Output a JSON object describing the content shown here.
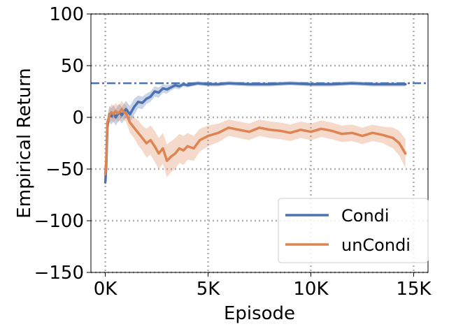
{
  "chart_data": {
    "type": "line",
    "title": "",
    "xlabel": "Episode",
    "ylabel": "Empirical Return",
    "xlim": [
      -700,
      15700
    ],
    "ylim": [
      -150,
      100
    ],
    "x_ticks": [
      0,
      5000,
      10000,
      15000
    ],
    "x_tick_labels": [
      "0K",
      "5K",
      "10K",
      "15K"
    ],
    "y_ticks": [
      -150,
      -100,
      -50,
      0,
      50,
      100
    ],
    "y_tick_labels": [
      "−150",
      "−100",
      "−50",
      "0",
      "50",
      "100"
    ],
    "grid": true,
    "legend": "lower right",
    "reference_line": {
      "y": 33,
      "style": "dashdot",
      "color": "#4c72b0"
    },
    "series": [
      {
        "name": "Condi",
        "color": "#4c72b0",
        "x": [
          0,
          50,
          100,
          150,
          200,
          300,
          400,
          500,
          600,
          700,
          800,
          1000,
          1200,
          1400,
          1600,
          1800,
          2000,
          2200,
          2400,
          2600,
          2800,
          3000,
          3200,
          3400,
          3600,
          3800,
          4000,
          4500,
          5000,
          5500,
          6000,
          7000,
          8000,
          9000,
          10000,
          11000,
          12000,
          13000,
          14000,
          14600
        ],
        "values": [
          -63,
          -45,
          -10,
          -2,
          3,
          1,
          4,
          0,
          3,
          5,
          2,
          8,
          3,
          10,
          15,
          14,
          18,
          20,
          25,
          24,
          28,
          27,
          29,
          31,
          30,
          32,
          31,
          33,
          32,
          32,
          33,
          32,
          32,
          33,
          32,
          32,
          33,
          32,
          32,
          32
        ],
        "band": [
          4,
          4,
          6,
          8,
          8,
          8,
          8,
          8,
          8,
          8,
          8,
          8,
          8,
          8,
          6,
          6,
          5,
          5,
          5,
          5,
          4,
          4,
          3,
          3,
          3,
          2,
          2,
          2,
          2,
          2,
          2,
          2,
          2,
          2,
          2,
          2,
          2,
          2,
          2,
          2
        ]
      },
      {
        "name": "unCondi",
        "color": "#dd8452",
        "x": [
          0,
          50,
          100,
          200,
          300,
          400,
          500,
          600,
          700,
          800,
          900,
          1000,
          1200,
          1400,
          1600,
          1800,
          2000,
          2200,
          2400,
          2600,
          2800,
          3000,
          3200,
          3400,
          3600,
          3800,
          4000,
          4300,
          4600,
          5000,
          5500,
          6000,
          6500,
          7000,
          7500,
          8000,
          8500,
          9000,
          9500,
          10000,
          10500,
          11000,
          11500,
          12000,
          12500,
          13000,
          13500,
          14000,
          14300,
          14600
        ],
        "values": [
          -55,
          -40,
          -5,
          2,
          5,
          3,
          6,
          4,
          5,
          8,
          5,
          4,
          -5,
          -10,
          -15,
          -20,
          -25,
          -22,
          -28,
          -35,
          -30,
          -42,
          -38,
          -35,
          -30,
          -32,
          -28,
          -30,
          -22,
          -18,
          -15,
          -10,
          -12,
          -14,
          -10,
          -12,
          -13,
          -15,
          -12,
          -14,
          -11,
          -13,
          -16,
          -15,
          -18,
          -15,
          -17,
          -20,
          -25,
          -35
        ],
        "band": [
          4,
          4,
          6,
          7,
          8,
          8,
          8,
          8,
          8,
          8,
          8,
          8,
          10,
          10,
          12,
          12,
          14,
          14,
          15,
          15,
          15,
          16,
          15,
          15,
          14,
          14,
          13,
          12,
          11,
          10,
          9,
          8,
          8,
          8,
          8,
          8,
          8,
          8,
          8,
          8,
          8,
          8,
          8,
          8,
          8,
          8,
          8,
          10,
          12,
          14
        ]
      }
    ]
  }
}
